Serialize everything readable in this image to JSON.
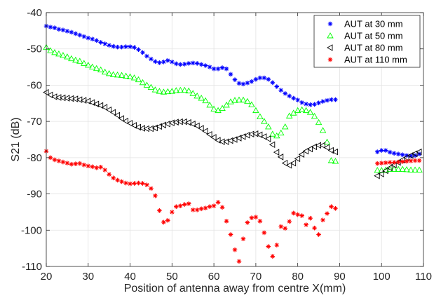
{
  "chart_data": {
    "type": "scatter",
    "title": "",
    "xlabel": "Position of antenna away from centre X(mm)",
    "ylabel": "S21 (dB)",
    "xlim": [
      20,
      110
    ],
    "ylim": [
      -110,
      -40
    ],
    "xticks": [
      20,
      30,
      40,
      50,
      60,
      70,
      80,
      90,
      100,
      110
    ],
    "yticks": [
      -40,
      -50,
      -60,
      -70,
      -80,
      -90,
      -100,
      -110
    ],
    "grid": true,
    "legend_position": "top-right",
    "series": [
      {
        "name": "AUT at 30 mm",
        "marker": "asterisk",
        "color": "#0000ff",
        "x": [
          20,
          21,
          22,
          23,
          24,
          25,
          26,
          27,
          28,
          29,
          30,
          31,
          32,
          33,
          34,
          35,
          36,
          37,
          38,
          39,
          40,
          41,
          42,
          43,
          44,
          45,
          46,
          47,
          48,
          49,
          50,
          51,
          52,
          53,
          54,
          55,
          56,
          57,
          58,
          59,
          60,
          61,
          62,
          63,
          64,
          65,
          66,
          67,
          68,
          69,
          70,
          71,
          72,
          73,
          74,
          75,
          76,
          77,
          78,
          79,
          80,
          81,
          82,
          83,
          84,
          85,
          86,
          87,
          88,
          89,
          99,
          100,
          101,
          102,
          103,
          104,
          105,
          106,
          107,
          108,
          109
        ],
        "y": [
          -43.7,
          -44,
          -44.2,
          -44.6,
          -44.8,
          -45.1,
          -45.4,
          -45.8,
          -46.2,
          -46.6,
          -47,
          -47.3,
          -47.7,
          -48.2,
          -48.6,
          -49,
          -49.3,
          -49.5,
          -49.5,
          -49.4,
          -49.4,
          -49.6,
          -50.2,
          -51,
          -52,
          -52.8,
          -53.5,
          -53.8,
          -53.6,
          -53.2,
          -53.6,
          -54.1,
          -54.3,
          -54.2,
          -54,
          -53.9,
          -54,
          -54.3,
          -54.6,
          -55,
          -55.5,
          -55.5,
          -55.2,
          -55.5,
          -57,
          -58.5,
          -59.5,
          -59.7,
          -59.4,
          -59,
          -58.4,
          -58,
          -58,
          -58.4,
          -59.3,
          -60.4,
          -61.4,
          -62.3,
          -63,
          -63.6,
          -64.1,
          -64.8,
          -65.2,
          -65.4,
          -65.3,
          -64.9,
          -64.5,
          -64.2,
          -64,
          -64,
          -78.4,
          -78,
          -78,
          -78.5,
          -78.8,
          -79,
          -79.2,
          -79.4,
          -79.5,
          -79.4,
          -79
        ]
      },
      {
        "name": "AUT at 50 mm",
        "marker": "triangle-up",
        "color": "#00ff00",
        "x": [
          20,
          21,
          22,
          23,
          24,
          25,
          26,
          27,
          28,
          29,
          30,
          31,
          32,
          33,
          34,
          35,
          36,
          37,
          38,
          39,
          40,
          41,
          42,
          43,
          44,
          45,
          46,
          47,
          48,
          49,
          50,
          51,
          52,
          53,
          54,
          55,
          56,
          57,
          58,
          59,
          60,
          61,
          62,
          63,
          64,
          65,
          66,
          67,
          68,
          69,
          70,
          71,
          72,
          73,
          74,
          75,
          76,
          77,
          78,
          79,
          80,
          81,
          82,
          83,
          84,
          85,
          86,
          87,
          88,
          89,
          99,
          100,
          101,
          102,
          103,
          104,
          105,
          106,
          107,
          108,
          109
        ],
        "y": [
          -49.6,
          -50.5,
          -51,
          -51.4,
          -51.8,
          -52.2,
          -52.7,
          -53.1,
          -53.4,
          -54,
          -54.5,
          -55,
          -55.4,
          -55.8,
          -56.4,
          -56.8,
          -57.1,
          -57.2,
          -57.3,
          -57.5,
          -57.7,
          -58,
          -58.5,
          -59.3,
          -60,
          -60.6,
          -61.3,
          -61.7,
          -61.9,
          -61.8,
          -61.7,
          -61.5,
          -61.4,
          -61.4,
          -61.6,
          -62.3,
          -63,
          -63.6,
          -64.3,
          -65.5,
          -66.6,
          -67,
          -66.4,
          -65.5,
          -64.6,
          -64.2,
          -64.1,
          -64.1,
          -64.5,
          -65.4,
          -67,
          -68.7,
          -70,
          -71.5,
          -73.5,
          -74,
          -73.2,
          -71.5,
          -68.5,
          -67.7,
          -67,
          -66.8,
          -67,
          -67.5,
          -68.6,
          -70.3,
          -72.5,
          -75.7,
          -80.8,
          -81,
          -83.5,
          -83.5,
          -83.4,
          -83.2,
          -83.2,
          -83.2,
          -83.2,
          -83.3,
          -83.4,
          -83.4,
          -83.4
        ]
      },
      {
        "name": "AUT at 80 mm",
        "marker": "triangle-left",
        "color": "#000000",
        "x": [
          20,
          21,
          22,
          23,
          24,
          25,
          26,
          27,
          28,
          29,
          30,
          31,
          32,
          33,
          34,
          35,
          36,
          37,
          38,
          39,
          40,
          41,
          42,
          43,
          44,
          45,
          46,
          47,
          48,
          49,
          50,
          51,
          52,
          53,
          54,
          55,
          56,
          57,
          58,
          59,
          60,
          61,
          62,
          63,
          64,
          65,
          66,
          67,
          68,
          69,
          70,
          71,
          72,
          73,
          74,
          75,
          76,
          77,
          78,
          79,
          80,
          81,
          82,
          83,
          84,
          85,
          86,
          87,
          88,
          89,
          99,
          100,
          101,
          102,
          103,
          104,
          105,
          106,
          107,
          108,
          109
        ],
        "y": [
          -62,
          -62.7,
          -63.2,
          -63.4,
          -63.5,
          -63.6,
          -63.7,
          -63.8,
          -64,
          -64.2,
          -64.4,
          -64.8,
          -65.2,
          -65.6,
          -66.1,
          -66.8,
          -67.5,
          -68.3,
          -69.2,
          -69.9,
          -70.5,
          -71.1,
          -71.6,
          -71.9,
          -72,
          -72,
          -71.8,
          -71.4,
          -71,
          -70.7,
          -70.4,
          -70.2,
          -70.1,
          -70.1,
          -70.3,
          -70.7,
          -71.2,
          -71.9,
          -72.7,
          -73.6,
          -74.4,
          -75.2,
          -75.6,
          -75.6,
          -75.3,
          -75,
          -74.6,
          -74.2,
          -73.8,
          -73.5,
          -73.4,
          -73.7,
          -74.2,
          -74.8,
          -76.4,
          -78.5,
          -79.8,
          -81.5,
          -82.1,
          -81.5,
          -80.3,
          -79.1,
          -78.2,
          -77.6,
          -77,
          -76.6,
          -76.6,
          -77.2,
          -78,
          -78.4,
          -85,
          -84.5,
          -83.6,
          -82.8,
          -82,
          -81.3,
          -80.6,
          -80,
          -79.4,
          -78.9,
          -78.4
        ]
      },
      {
        "name": "AUT at 110 mm",
        "marker": "asterisk",
        "color": "#ff0000",
        "x": [
          20,
          21,
          22,
          23,
          24,
          25,
          26,
          27,
          28,
          29,
          30,
          31,
          32,
          33,
          34,
          35,
          36,
          37,
          38,
          39,
          40,
          41,
          42,
          43,
          44,
          45,
          46,
          47,
          48,
          49,
          50,
          51,
          52,
          53,
          54,
          55,
          56,
          57,
          58,
          59,
          60,
          61,
          62,
          63,
          64,
          65,
          66,
          67,
          68,
          69,
          70,
          71,
          72,
          73,
          74,
          75,
          76,
          77,
          78,
          79,
          80,
          81,
          82,
          83,
          84,
          85,
          86,
          87,
          88,
          89,
          99,
          100,
          101,
          102,
          103,
          104,
          105,
          106,
          107,
          108,
          109
        ],
        "y": [
          -78.2,
          -80,
          -80.6,
          -80.9,
          -81.2,
          -81.5,
          -81.8,
          -81.7,
          -81.6,
          -82,
          -82.3,
          -82.5,
          -82.8,
          -82.6,
          -83.4,
          -84.6,
          -85.6,
          -86.2,
          -86.6,
          -87,
          -87.2,
          -87.1,
          -87,
          -87.1,
          -87.5,
          -88.5,
          -90.5,
          -94.6,
          -97.8,
          -97.3,
          -95,
          -93.5,
          -93.3,
          -92.9,
          -92.7,
          -94.4,
          -94.4,
          -94.1,
          -93.9,
          -93.5,
          -93.3,
          -92.3,
          -93.7,
          -97.5,
          -101.2,
          -105.4,
          -108.6,
          -102.4,
          -97.9,
          -96.6,
          -96.4,
          -97.5,
          -100.7,
          -104.5,
          -107.2,
          -104.1,
          -99,
          -99.5,
          -97.6,
          -95.3,
          -95.7,
          -96,
          -98.5,
          -96.7,
          -99.4,
          -101.2,
          -97.2,
          -95.4,
          -93.5,
          -94,
          -81.6,
          -81.5,
          -81.4,
          -81.3,
          -81.3,
          -81.2,
          -81.1,
          -81,
          -80.9,
          -80.8,
          -80.8
        ]
      }
    ]
  }
}
